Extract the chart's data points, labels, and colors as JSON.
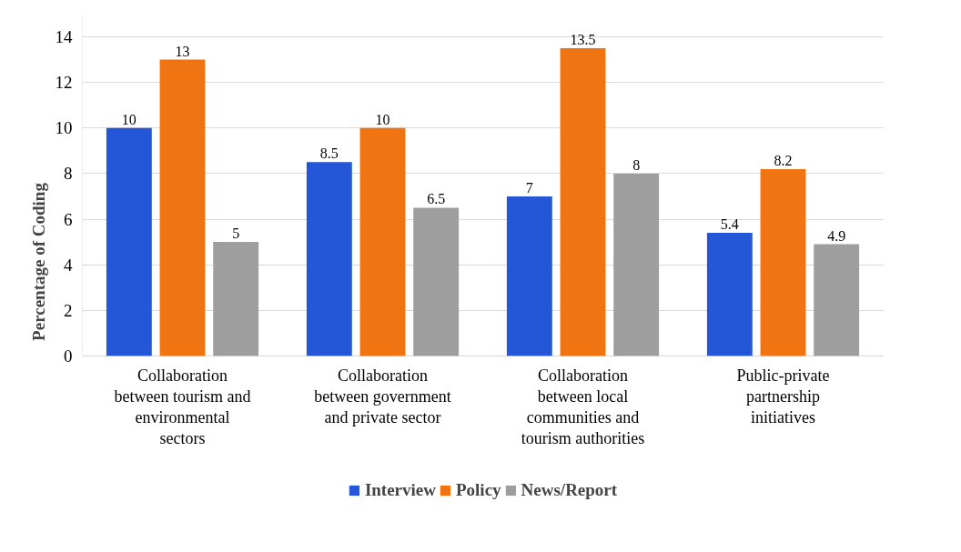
{
  "chart_data": {
    "type": "bar",
    "ylabel": "Percentage of Coding",
    "categories": [
      "Collaboration between tourism and environmental sectors",
      "Collaboration between government and private sector",
      "Collaboration between local communities and tourism authorities",
      "Public-private partnership initiatives"
    ],
    "series": [
      {
        "name": "Interview",
        "color": "#2456d8",
        "values": [
          10,
          8.5,
          7,
          5.4
        ]
      },
      {
        "name": "Policy",
        "color": "#f07412",
        "values": [
          13,
          10,
          13.5,
          8.2
        ]
      },
      {
        "name": "News/Report",
        "color": "#9e9e9e",
        "values": [
          5,
          6.5,
          8,
          4.9
        ]
      }
    ],
    "ylim": [
      0,
      15
    ],
    "yticks": [
      0,
      2,
      4,
      6,
      8,
      10,
      12,
      14
    ],
    "grid": "y",
    "legend": "bottom",
    "data_labels": true
  }
}
